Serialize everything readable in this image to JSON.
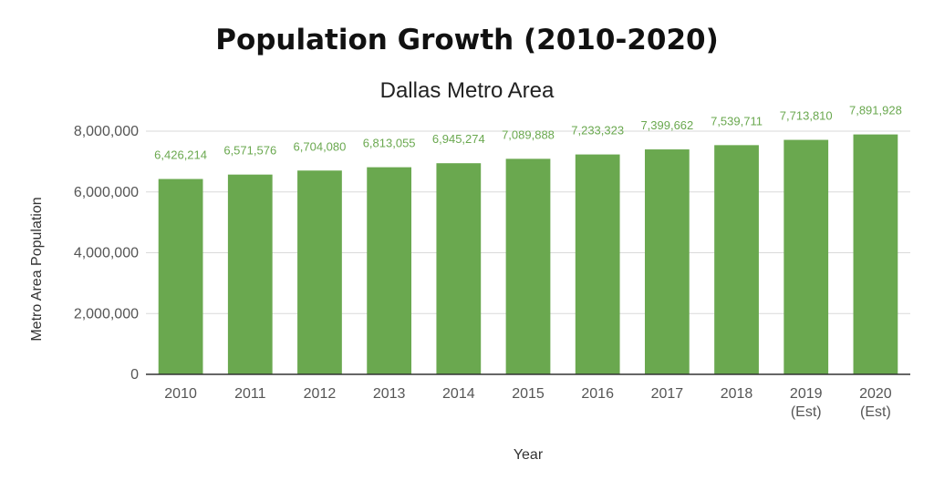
{
  "chart_data": {
    "type": "bar",
    "title": "Population Growth (2010-2020)",
    "subtitle": "Dallas Metro Area",
    "xlabel": "Year",
    "ylabel": "Metro Area Population",
    "categories": [
      "2010",
      "2011",
      "2012",
      "2013",
      "2014",
      "2015",
      "2016",
      "2017",
      "2018",
      "2019 (Est)",
      "2020 (Est)"
    ],
    "values": [
      6426214,
      6571576,
      6704080,
      6813055,
      6945274,
      7089888,
      7233323,
      7399662,
      7539711,
      7713810,
      7891928
    ],
    "value_labels": [
      "6,426,214",
      "6,571,576",
      "6,704,080",
      "6,813,055",
      "6,945,274",
      "7,089,888",
      "7,233,323",
      "7,399,662",
      "7,539,711",
      "7,713,810",
      "7,891,928"
    ],
    "ylim": [
      0,
      8000000
    ],
    "yticks": [
      0,
      2000000,
      4000000,
      6000000,
      8000000
    ],
    "ytick_labels": [
      "0",
      "2,000,000",
      "4,000,000",
      "6,000,000",
      "8,000,000"
    ],
    "grid": true,
    "legend": "none",
    "bar_color": "#6aa84f",
    "label_color": "#6aa84f"
  }
}
